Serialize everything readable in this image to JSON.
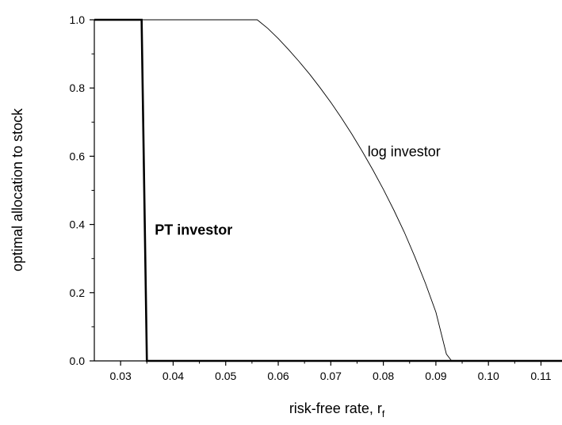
{
  "chart_data": {
    "type": "line",
    "xlabel": "risk-free rate, r",
    "xlabel_subscript": "f",
    "ylabel": "optimal allocation to stock",
    "xlim": [
      0.025,
      0.114
    ],
    "ylim": [
      0.0,
      1.0
    ],
    "x_ticks": [
      "0.03",
      "0.04",
      "0.05",
      "0.06",
      "0.07",
      "0.08",
      "0.09",
      "0.10",
      "0.11"
    ],
    "y_ticks": [
      "0.0",
      "0.2",
      "0.4",
      "0.6",
      "0.8",
      "1.0"
    ],
    "grid": false,
    "series": [
      {
        "name": "PT investor",
        "style": "bold",
        "color": "#000000",
        "points": [
          [
            0.025,
            1.0
          ],
          [
            0.034,
            1.0
          ],
          [
            0.035,
            0.0
          ],
          [
            0.114,
            0.0
          ]
        ]
      },
      {
        "name": "log investor",
        "style": "thin",
        "color": "#000000",
        "points": [
          [
            0.025,
            1.0
          ],
          [
            0.056,
            1.0
          ],
          [
            0.058,
            0.975
          ],
          [
            0.06,
            0.945
          ],
          [
            0.062,
            0.912
          ],
          [
            0.064,
            0.877
          ],
          [
            0.066,
            0.84
          ],
          [
            0.068,
            0.8
          ],
          [
            0.07,
            0.758
          ],
          [
            0.072,
            0.713
          ],
          [
            0.074,
            0.665
          ],
          [
            0.076,
            0.614
          ],
          [
            0.078,
            0.56
          ],
          [
            0.08,
            0.503
          ],
          [
            0.082,
            0.442
          ],
          [
            0.084,
            0.377
          ],
          [
            0.086,
            0.305
          ],
          [
            0.088,
            0.228
          ],
          [
            0.09,
            0.143
          ],
          [
            0.092,
            0.02
          ],
          [
            0.093,
            0.0
          ],
          [
            0.114,
            0.0
          ]
        ]
      }
    ],
    "annotations": [
      {
        "text": "log investor",
        "x": 0.077,
        "y": 0.6,
        "bold": false
      },
      {
        "text": "PT investor",
        "x": 0.0365,
        "y": 0.37,
        "bold": true
      }
    ]
  }
}
